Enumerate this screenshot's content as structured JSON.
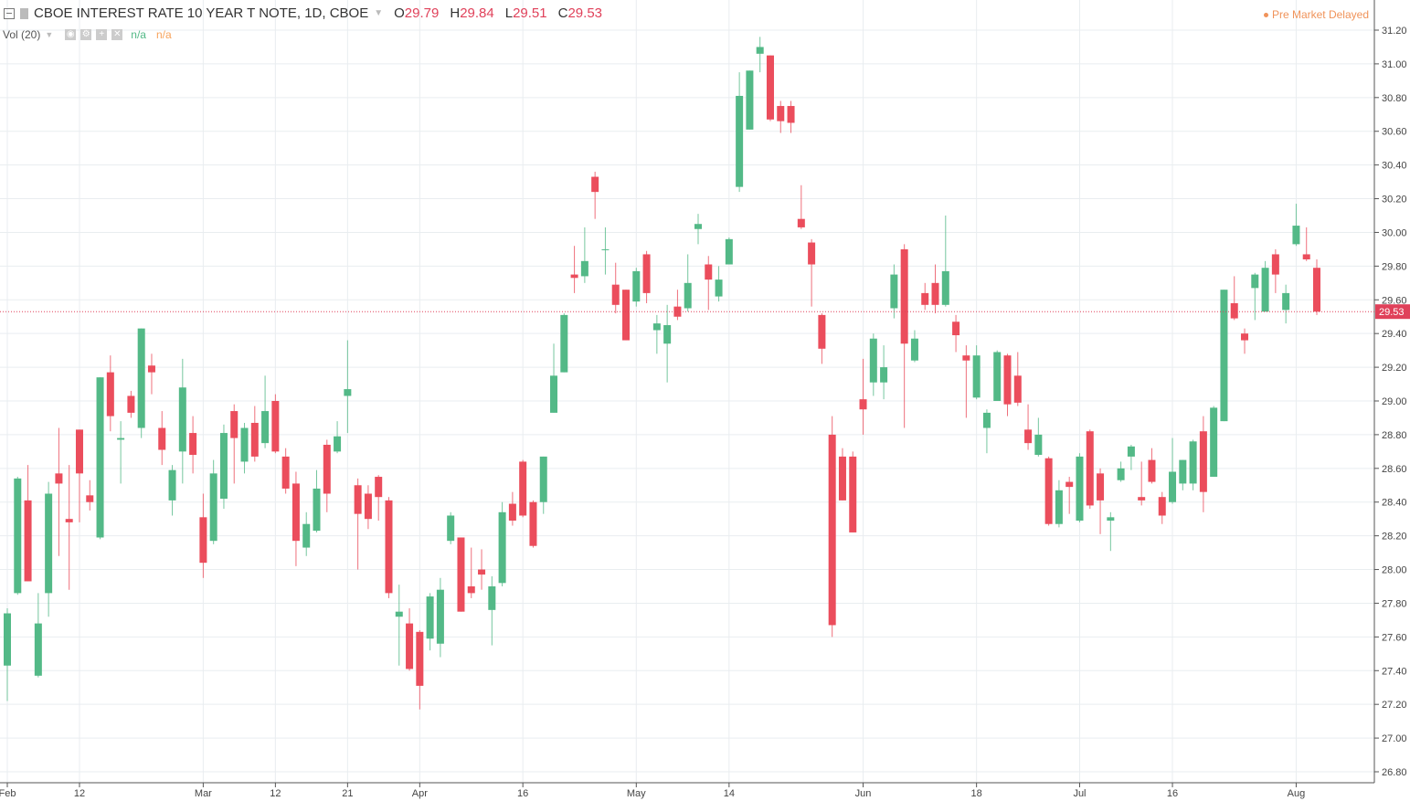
{
  "header": {
    "title": "CBOE INTEREST RATE 10 YEAR T NOTE, 1D, CBOE",
    "o_label": "O",
    "o_value": "29.79",
    "h_label": "H",
    "h_value": "29.84",
    "l_label": "L",
    "l_value": "29.51",
    "c_label": "C",
    "c_value": "29.53"
  },
  "volume": {
    "label": "Vol (20)",
    "value1": "n/a",
    "value2": "n/a"
  },
  "status": {
    "text": "Pre Market  Delayed"
  },
  "colors": {
    "up": "#53b987",
    "down": "#eb4d5c",
    "grid": "#e9edf0",
    "price_line": "#e0415a"
  },
  "chart_data": {
    "type": "candlestick",
    "title": "CBOE INTEREST RATE 10 YEAR T NOTE, 1D, CBOE",
    "ylim": [
      26.8,
      31.2
    ],
    "y_ticks": [
      "31.20",
      "31.00",
      "30.80",
      "30.60",
      "30.40",
      "30.20",
      "30.00",
      "29.80",
      "29.60",
      "29.40",
      "29.20",
      "29.00",
      "28.80",
      "28.60",
      "28.40",
      "28.20",
      "28.00",
      "27.80",
      "27.60",
      "27.40",
      "27.20",
      "27.00",
      "26.80"
    ],
    "x_ticks": [
      {
        "label": "Feb",
        "date": "2018-02-01"
      },
      {
        "label": "12",
        "date": "2018-02-12"
      },
      {
        "label": "Mar",
        "date": "2018-03-01"
      },
      {
        "label": "12",
        "date": "2018-03-12"
      },
      {
        "label": "21",
        "date": "2018-03-21"
      },
      {
        "label": "Apr",
        "date": "2018-04-02"
      },
      {
        "label": "16",
        "date": "2018-04-16"
      },
      {
        "label": "May",
        "date": "2018-05-01"
      },
      {
        "label": "14",
        "date": "2018-05-14"
      },
      {
        "label": "Jun",
        "date": "2018-06-01"
      },
      {
        "label": "18",
        "date": "2018-06-18"
      },
      {
        "label": "Jul",
        "date": "2018-07-02"
      },
      {
        "label": "16",
        "date": "2018-07-16"
      },
      {
        "label": "Aug",
        "date": "2018-08-01"
      }
    ],
    "grid": true,
    "last_price": "29.53",
    "columns": [
      "date",
      "open",
      "high",
      "low",
      "close"
    ],
    "candles": [
      [
        "2018-02-01",
        27.43,
        27.77,
        27.22,
        27.74
      ],
      [
        "2018-02-02",
        27.86,
        28.55,
        27.85,
        28.54
      ],
      [
        "2018-02-05",
        28.41,
        28.62,
        27.93,
        27.93
      ],
      [
        "2018-02-06",
        27.37,
        27.86,
        27.36,
        27.68
      ],
      [
        "2018-02-07",
        27.86,
        28.52,
        27.72,
        28.45
      ],
      [
        "2018-02-08",
        28.57,
        28.84,
        28.08,
        28.51
      ],
      [
        "2018-02-09",
        28.3,
        28.62,
        27.88,
        28.28
      ],
      [
        "2018-02-12",
        28.83,
        28.83,
        28.28,
        28.57
      ],
      [
        "2018-02-13",
        28.44,
        28.53,
        28.35,
        28.4
      ],
      [
        "2018-02-14",
        28.19,
        29.14,
        28.18,
        29.14
      ],
      [
        "2018-02-15",
        29.17,
        29.27,
        28.82,
        28.91
      ],
      [
        "2018-02-16",
        28.77,
        28.88,
        28.51,
        28.78
      ],
      [
        "2018-02-20",
        29.03,
        29.06,
        28.9,
        28.93
      ],
      [
        "2018-02-21",
        28.84,
        29.43,
        28.78,
        29.43
      ],
      [
        "2018-02-22",
        29.21,
        29.28,
        29.04,
        29.17
      ],
      [
        "2018-02-23",
        28.84,
        28.94,
        28.62,
        28.71
      ],
      [
        "2018-02-26",
        28.41,
        28.62,
        28.32,
        28.59
      ],
      [
        "2018-02-27",
        28.7,
        29.25,
        28.51,
        29.08
      ],
      [
        "2018-02-28",
        28.81,
        28.91,
        28.57,
        28.68
      ],
      [
        "2018-03-01",
        28.31,
        28.45,
        27.95,
        28.04
      ],
      [
        "2018-03-02",
        28.17,
        28.65,
        28.15,
        28.57
      ],
      [
        "2018-03-05",
        28.42,
        28.86,
        28.36,
        28.81
      ],
      [
        "2018-03-06",
        28.94,
        28.98,
        28.51,
        28.78
      ],
      [
        "2018-03-07",
        28.64,
        28.87,
        28.57,
        28.84
      ],
      [
        "2018-03-08",
        28.87,
        28.97,
        28.64,
        28.67
      ],
      [
        "2018-03-09",
        28.75,
        29.15,
        28.72,
        28.94
      ],
      [
        "2018-03-12",
        29.0,
        29.04,
        28.69,
        28.7
      ],
      [
        "2018-03-13",
        28.67,
        28.72,
        28.45,
        28.48
      ],
      [
        "2018-03-14",
        28.51,
        28.58,
        28.02,
        28.17
      ],
      [
        "2018-03-15",
        28.13,
        28.34,
        28.08,
        28.27
      ],
      [
        "2018-03-16",
        28.23,
        28.59,
        28.22,
        28.48
      ],
      [
        "2018-03-19",
        28.74,
        28.77,
        28.34,
        28.45
      ],
      [
        "2018-03-20",
        28.7,
        28.88,
        28.69,
        28.79
      ],
      [
        "2018-03-21",
        29.03,
        29.36,
        28.81,
        29.07
      ],
      [
        "2018-03-22",
        28.5,
        28.54,
        28.0,
        28.33
      ],
      [
        "2018-03-23",
        28.45,
        28.5,
        28.24,
        28.3
      ],
      [
        "2018-03-26",
        28.55,
        28.56,
        28.29,
        28.43
      ],
      [
        "2018-03-27",
        28.41,
        28.43,
        27.83,
        27.86
      ],
      [
        "2018-03-28",
        27.72,
        27.91,
        27.43,
        27.75
      ],
      [
        "2018-03-29",
        27.68,
        27.77,
        27.4,
        27.41
      ],
      [
        "2018-04-02",
        27.63,
        27.64,
        27.17,
        27.31
      ],
      [
        "2018-04-03",
        27.59,
        27.86,
        27.52,
        27.84
      ],
      [
        "2018-04-04",
        27.56,
        27.95,
        27.48,
        27.88
      ],
      [
        "2018-04-05",
        28.17,
        28.34,
        28.15,
        28.32
      ],
      [
        "2018-04-06",
        28.19,
        28.19,
        27.75,
        27.75
      ],
      [
        "2018-04-09",
        27.9,
        28.13,
        27.83,
        27.86
      ],
      [
        "2018-04-10",
        28.0,
        28.12,
        27.88,
        27.97
      ],
      [
        "2018-04-11",
        27.76,
        27.96,
        27.55,
        27.9
      ],
      [
        "2018-04-12",
        27.92,
        28.4,
        27.9,
        28.34
      ],
      [
        "2018-04-13",
        28.39,
        28.46,
        28.26,
        28.29
      ],
      [
        "2018-04-16",
        28.64,
        28.65,
        28.31,
        28.32
      ],
      [
        "2018-04-17",
        28.4,
        28.41,
        28.13,
        28.14
      ],
      [
        "2018-04-18",
        28.4,
        28.67,
        28.33,
        28.67
      ],
      [
        "2018-04-19",
        28.93,
        29.34,
        28.93,
        29.15
      ],
      [
        "2018-04-20",
        29.17,
        29.52,
        29.17,
        29.51
      ],
      [
        "2018-04-23",
        29.75,
        29.92,
        29.64,
        29.73
      ],
      [
        "2018-04-24",
        29.74,
        30.03,
        29.7,
        29.83
      ],
      [
        "2018-04-25",
        30.33,
        30.36,
        30.08,
        30.24
      ],
      [
        "2018-04-26",
        29.9,
        30.03,
        29.75,
        29.9
      ],
      [
        "2018-04-27",
        29.69,
        29.82,
        29.52,
        29.57
      ],
      [
        "2018-04-30",
        29.66,
        29.66,
        29.36,
        29.36
      ],
      [
        "2018-05-01",
        29.59,
        29.79,
        29.56,
        29.77
      ],
      [
        "2018-05-02",
        29.87,
        29.89,
        29.58,
        29.64
      ],
      [
        "2018-05-03",
        29.42,
        29.51,
        29.28,
        29.46
      ],
      [
        "2018-05-04",
        29.34,
        29.57,
        29.11,
        29.45
      ],
      [
        "2018-05-07",
        29.56,
        29.66,
        29.48,
        29.5
      ],
      [
        "2018-05-08",
        29.55,
        29.87,
        29.53,
        29.7
      ],
      [
        "2018-05-09",
        30.02,
        30.11,
        29.93,
        30.05
      ],
      [
        "2018-05-10",
        29.81,
        29.86,
        29.54,
        29.72
      ],
      [
        "2018-05-11",
        29.62,
        29.8,
        29.59,
        29.72
      ],
      [
        "2018-05-14",
        29.81,
        29.97,
        29.81,
        29.96
      ],
      [
        "2018-05-15",
        30.27,
        30.95,
        30.24,
        30.81
      ],
      [
        "2018-05-16",
        30.61,
        30.96,
        30.61,
        30.96
      ],
      [
        "2018-05-17",
        31.06,
        31.16,
        30.95,
        31.1
      ],
      [
        "2018-05-18",
        31.05,
        31.05,
        30.66,
        30.67
      ],
      [
        "2018-05-21",
        30.75,
        30.78,
        30.59,
        30.66
      ],
      [
        "2018-05-22",
        30.75,
        30.78,
        30.59,
        30.65
      ],
      [
        "2018-05-23",
        30.08,
        30.28,
        30.02,
        30.03
      ],
      [
        "2018-05-24",
        29.94,
        29.96,
        29.56,
        29.81
      ],
      [
        "2018-05-25",
        29.51,
        29.52,
        29.22,
        29.31
      ],
      [
        "2018-05-29",
        28.8,
        28.91,
        27.6,
        27.67
      ],
      [
        "2018-05-30",
        28.67,
        28.72,
        28.41,
        28.41
      ],
      [
        "2018-05-31",
        28.67,
        28.7,
        28.22,
        28.22
      ],
      [
        "2018-06-01",
        29.01,
        29.25,
        28.8,
        28.95
      ],
      [
        "2018-06-04",
        29.11,
        29.4,
        29.03,
        29.37
      ],
      [
        "2018-06-05",
        29.11,
        29.33,
        29.01,
        29.2
      ],
      [
        "2018-06-06",
        29.55,
        29.81,
        29.49,
        29.75
      ],
      [
        "2018-06-07",
        29.9,
        29.93,
        28.84,
        29.34
      ],
      [
        "2018-06-08",
        29.24,
        29.42,
        29.23,
        29.37
      ],
      [
        "2018-06-11",
        29.64,
        29.7,
        29.54,
        29.57
      ],
      [
        "2018-06-12",
        29.7,
        29.81,
        29.52,
        29.57
      ],
      [
        "2018-06-13",
        29.57,
        30.1,
        29.56,
        29.77
      ],
      [
        "2018-06-14",
        29.47,
        29.51,
        29.29,
        29.39
      ],
      [
        "2018-06-15",
        29.27,
        29.33,
        28.9,
        29.24
      ],
      [
        "2018-06-18",
        29.02,
        29.33,
        29.01,
        29.27
      ],
      [
        "2018-06-19",
        28.84,
        28.95,
        28.69,
        28.93
      ],
      [
        "2018-06-20",
        29.0,
        29.3,
        29.0,
        29.29
      ],
      [
        "2018-06-21",
        29.27,
        29.28,
        28.91,
        28.98
      ],
      [
        "2018-06-22",
        29.15,
        29.29,
        28.97,
        28.99
      ],
      [
        "2018-06-25",
        28.83,
        28.98,
        28.71,
        28.75
      ],
      [
        "2018-06-26",
        28.68,
        28.9,
        28.67,
        28.8
      ],
      [
        "2018-06-27",
        28.66,
        28.67,
        28.26,
        28.27
      ],
      [
        "2018-06-28",
        28.27,
        28.53,
        28.25,
        28.47
      ],
      [
        "2018-06-29",
        28.52,
        28.55,
        28.33,
        28.49
      ],
      [
        "2018-07-02",
        28.29,
        28.69,
        28.28,
        28.67
      ],
      [
        "2018-07-03",
        28.82,
        28.83,
        28.36,
        28.38
      ],
      [
        "2018-07-05",
        28.57,
        28.6,
        28.21,
        28.41
      ],
      [
        "2018-07-06",
        28.29,
        28.34,
        28.11,
        28.31
      ],
      [
        "2018-07-09",
        28.53,
        28.64,
        28.52,
        28.6
      ],
      [
        "2018-07-10",
        28.67,
        28.74,
        28.59,
        28.73
      ],
      [
        "2018-07-11",
        28.43,
        28.64,
        28.38,
        28.41
      ],
      [
        "2018-07-12",
        28.65,
        28.72,
        28.51,
        28.52
      ],
      [
        "2018-07-13",
        28.43,
        28.46,
        28.27,
        28.32
      ],
      [
        "2018-07-16",
        28.4,
        28.78,
        28.39,
        28.58
      ],
      [
        "2018-07-17",
        28.51,
        28.65,
        28.47,
        28.65
      ],
      [
        "2018-07-18",
        28.51,
        28.77,
        28.47,
        28.76
      ],
      [
        "2018-07-19",
        28.82,
        28.91,
        28.34,
        28.46
      ],
      [
        "2018-07-20",
        28.55,
        28.97,
        28.55,
        28.96
      ],
      [
        "2018-07-23",
        28.88,
        29.66,
        28.88,
        29.66
      ],
      [
        "2018-07-24",
        29.58,
        29.74,
        29.48,
        29.49
      ],
      [
        "2018-07-25",
        29.4,
        29.43,
        29.28,
        29.36
      ],
      [
        "2018-07-26",
        29.67,
        29.76,
        29.48,
        29.75
      ],
      [
        "2018-07-27",
        29.53,
        29.83,
        29.53,
        29.79
      ],
      [
        "2018-07-30",
        29.87,
        29.9,
        29.64,
        29.75
      ],
      [
        "2018-07-31",
        29.54,
        29.69,
        29.46,
        29.64
      ],
      [
        "2018-08-01",
        29.93,
        30.17,
        29.92,
        30.04
      ],
      [
        "2018-08-02",
        29.87,
        30.03,
        29.83,
        29.84
      ],
      [
        "2018-08-03",
        29.79,
        29.84,
        29.51,
        29.53
      ]
    ]
  }
}
